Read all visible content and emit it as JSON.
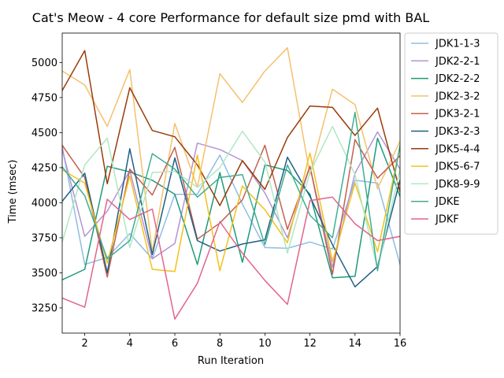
{
  "chart_data": {
    "type": "line",
    "title": "Cat's Meow - 4 core Performance for default size pmd with BAL",
    "xlabel": "Run Iteration",
    "ylabel": "Time (msec)",
    "xlim": [
      1,
      16
    ],
    "ylim": [
      3070,
      5210
    ],
    "xticks": [
      2,
      4,
      6,
      8,
      10,
      12,
      14,
      16
    ],
    "yticks": [
      3250,
      3500,
      3750,
      4000,
      4250,
      4500,
      4750,
      5000
    ],
    "legend_position": "outside-right",
    "x": [
      1,
      2,
      3,
      4,
      5,
      6,
      7,
      8,
      9,
      10,
      11,
      12,
      13,
      14,
      15,
      16
    ],
    "series": [
      {
        "name": "JDK1-1-3",
        "color": "#8fbde3",
        "values": [
          4400,
          3560,
          3610,
          3780,
          3600,
          4060,
          4060,
          4340,
          3990,
          3680,
          3675,
          3720,
          3670,
          4160,
          4140,
          3560
        ]
      },
      {
        "name": "JDK2-2-1",
        "color": "#b394d4",
        "values": [
          4380,
          3760,
          3940,
          4230,
          3600,
          3710,
          4425,
          4380,
          4300,
          4070,
          3750,
          4260,
          3540,
          4210,
          4505,
          4240
        ]
      },
      {
        "name": "JDK2-2-2",
        "color": "#1f9a7a",
        "values": [
          3450,
          3525,
          4260,
          4220,
          4160,
          4060,
          3560,
          4215,
          3575,
          4270,
          4230,
          4060,
          3465,
          3475,
          4460,
          4045
        ]
      },
      {
        "name": "JDK2-3-2",
        "color": "#f5c06f",
        "values": [
          4940,
          4840,
          4545,
          4950,
          3650,
          4565,
          4110,
          4920,
          4715,
          4940,
          5105,
          4200,
          4810,
          4700,
          4100,
          4440
        ]
      },
      {
        "name": "JDK3-2-1",
        "color": "#c45f4f",
        "values": [
          4410,
          4180,
          3470,
          4240,
          4055,
          4395,
          3740,
          3855,
          4020,
          4410,
          3810,
          4260,
          3490,
          4450,
          4175,
          4335
        ]
      },
      {
        "name": "JDK3-2-3",
        "color": "#1f5f84",
        "values": [
          4010,
          4210,
          3500,
          4385,
          3630,
          4320,
          3730,
          3655,
          3705,
          3735,
          4325,
          4045,
          3700,
          3400,
          3545,
          4160
        ]
      },
      {
        "name": "JDK5-4-4",
        "color": "#9a3b0a",
        "values": [
          4800,
          5085,
          4135,
          4820,
          4515,
          4470,
          4270,
          3980,
          4300,
          4095,
          4465,
          4690,
          4680,
          4480,
          4675,
          4080
        ]
      },
      {
        "name": "JDK5-6-7",
        "color": "#f2c21b",
        "values": [
          4235,
          4140,
          3570,
          4190,
          3525,
          3510,
          4340,
          3515,
          4120,
          3950,
          3715,
          4355,
          3580,
          4140,
          3650,
          4400
        ]
      },
      {
        "name": "JDK8-9-9",
        "color": "#aee8c4",
        "values": [
          3720,
          4270,
          4460,
          3680,
          4215,
          4225,
          4110,
          4250,
          4510,
          4290,
          3640,
          4215,
          4545,
          4200,
          3530,
          4240
        ]
      },
      {
        "name": "JDKE",
        "color": "#3fae92",
        "values": [
          4255,
          4050,
          3600,
          3730,
          4350,
          4240,
          4040,
          4180,
          4200,
          3700,
          4270,
          3910,
          3750,
          4645,
          3515,
          4410
        ]
      },
      {
        "name": "JDKF",
        "color": "#e2648c",
        "values": [
          3320,
          3255,
          4025,
          3880,
          3955,
          3170,
          3425,
          3865,
          3640,
          3445,
          3275,
          4015,
          4040,
          3850,
          3730,
          3760
        ]
      }
    ]
  }
}
